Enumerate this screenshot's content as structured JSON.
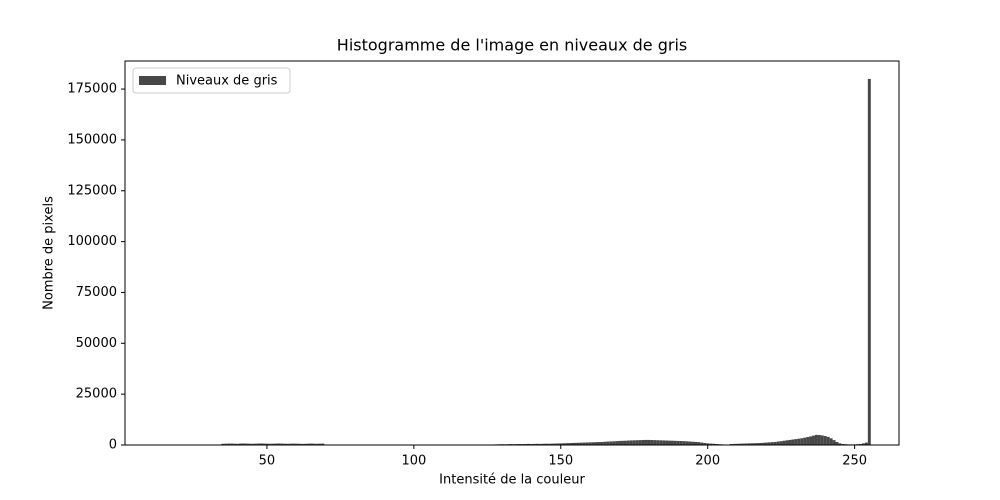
{
  "chart_data": {
    "type": "histogram",
    "title": "Histogramme de l'image en niveaux de gris",
    "x_label": "Intensité de la couleur",
    "y_label": "Nombre de pixels",
    "series": [
      {
        "name": "Niveaux de gris",
        "color": "#474747",
        "x": [
          35,
          36,
          37,
          38,
          39,
          40,
          41,
          42,
          43,
          44,
          45,
          46,
          47,
          48,
          49,
          50,
          51,
          52,
          53,
          54,
          55,
          56,
          57,
          58,
          59,
          60,
          61,
          62,
          63,
          64,
          65,
          66,
          67,
          68,
          69,
          128,
          129,
          130,
          131,
          132,
          133,
          134,
          135,
          136,
          137,
          138,
          139,
          140,
          141,
          142,
          143,
          144,
          145,
          146,
          147,
          148,
          149,
          150,
          151,
          152,
          153,
          154,
          155,
          156,
          157,
          158,
          159,
          160,
          161,
          162,
          163,
          164,
          165,
          166,
          167,
          168,
          169,
          170,
          171,
          172,
          173,
          174,
          175,
          176,
          177,
          178,
          179,
          180,
          181,
          182,
          183,
          184,
          185,
          186,
          187,
          188,
          189,
          190,
          191,
          192,
          193,
          194,
          195,
          196,
          197,
          198,
          199,
          200,
          201,
          202,
          203,
          204,
          205,
          206,
          207,
          208,
          209,
          210,
          211,
          212,
          213,
          214,
          215,
          216,
          217,
          218,
          219,
          220,
          221,
          222,
          223,
          224,
          225,
          226,
          227,
          228,
          229,
          230,
          231,
          232,
          233,
          234,
          235,
          236,
          237,
          238,
          239,
          240,
          241,
          242,
          243,
          244,
          245,
          246,
          247,
          248,
          249,
          250,
          251,
          252,
          253,
          254,
          255
        ],
        "values": [
          600,
          650,
          700,
          700,
          650,
          600,
          700,
          750,
          700,
          650,
          600,
          650,
          700,
          750,
          700,
          650,
          600,
          650,
          700,
          750,
          700,
          650,
          600,
          650,
          700,
          650,
          600,
          550,
          600,
          650,
          700,
          650,
          600,
          650,
          700,
          300,
          350,
          400,
          350,
          400,
          450,
          400,
          450,
          500,
          450,
          500,
          550,
          500,
          550,
          600,
          550,
          600,
          650,
          600,
          650,
          700,
          750,
          800,
          850,
          900,
          950,
          1000,
          1050,
          1100,
          1150,
          1200,
          1250,
          1300,
          1350,
          1400,
          1450,
          1500,
          1600,
          1700,
          1750,
          1800,
          1900,
          2000,
          2050,
          2100,
          2200,
          2250,
          2300,
          2350,
          2400,
          2450,
          2500,
          2500,
          2450,
          2400,
          2350,
          2300,
          2250,
          2200,
          2150,
          2100,
          2050,
          2000,
          1950,
          1900,
          1800,
          1700,
          1600,
          1500,
          1400,
          1200,
          1000,
          800,
          700,
          600,
          500,
          400,
          300,
          250,
          200,
          500,
          550,
          600,
          650,
          700,
          750,
          800,
          850,
          900,
          950,
          1000,
          1100,
          1200,
          1300,
          1400,
          1500,
          1700,
          1900,
          2100,
          2300,
          2500,
          2700,
          2900,
          3100,
          3300,
          3600,
          3900,
          4200,
          4600,
          5000,
          4900,
          4700,
          4400,
          4000,
          3300,
          2400,
          1500,
          800,
          500,
          400,
          300,
          300,
          300,
          400,
          500,
          800,
          1200,
          180000
        ]
      }
    ],
    "xlim": [
      1.7,
      265.1
    ],
    "ylim": [
      0,
      188800
    ],
    "xticks": [
      50,
      100,
      150,
      200,
      250
    ],
    "yticks": [
      0,
      25000,
      50000,
      75000,
      100000,
      125000,
      150000,
      175000
    ],
    "legend": "upper left"
  }
}
